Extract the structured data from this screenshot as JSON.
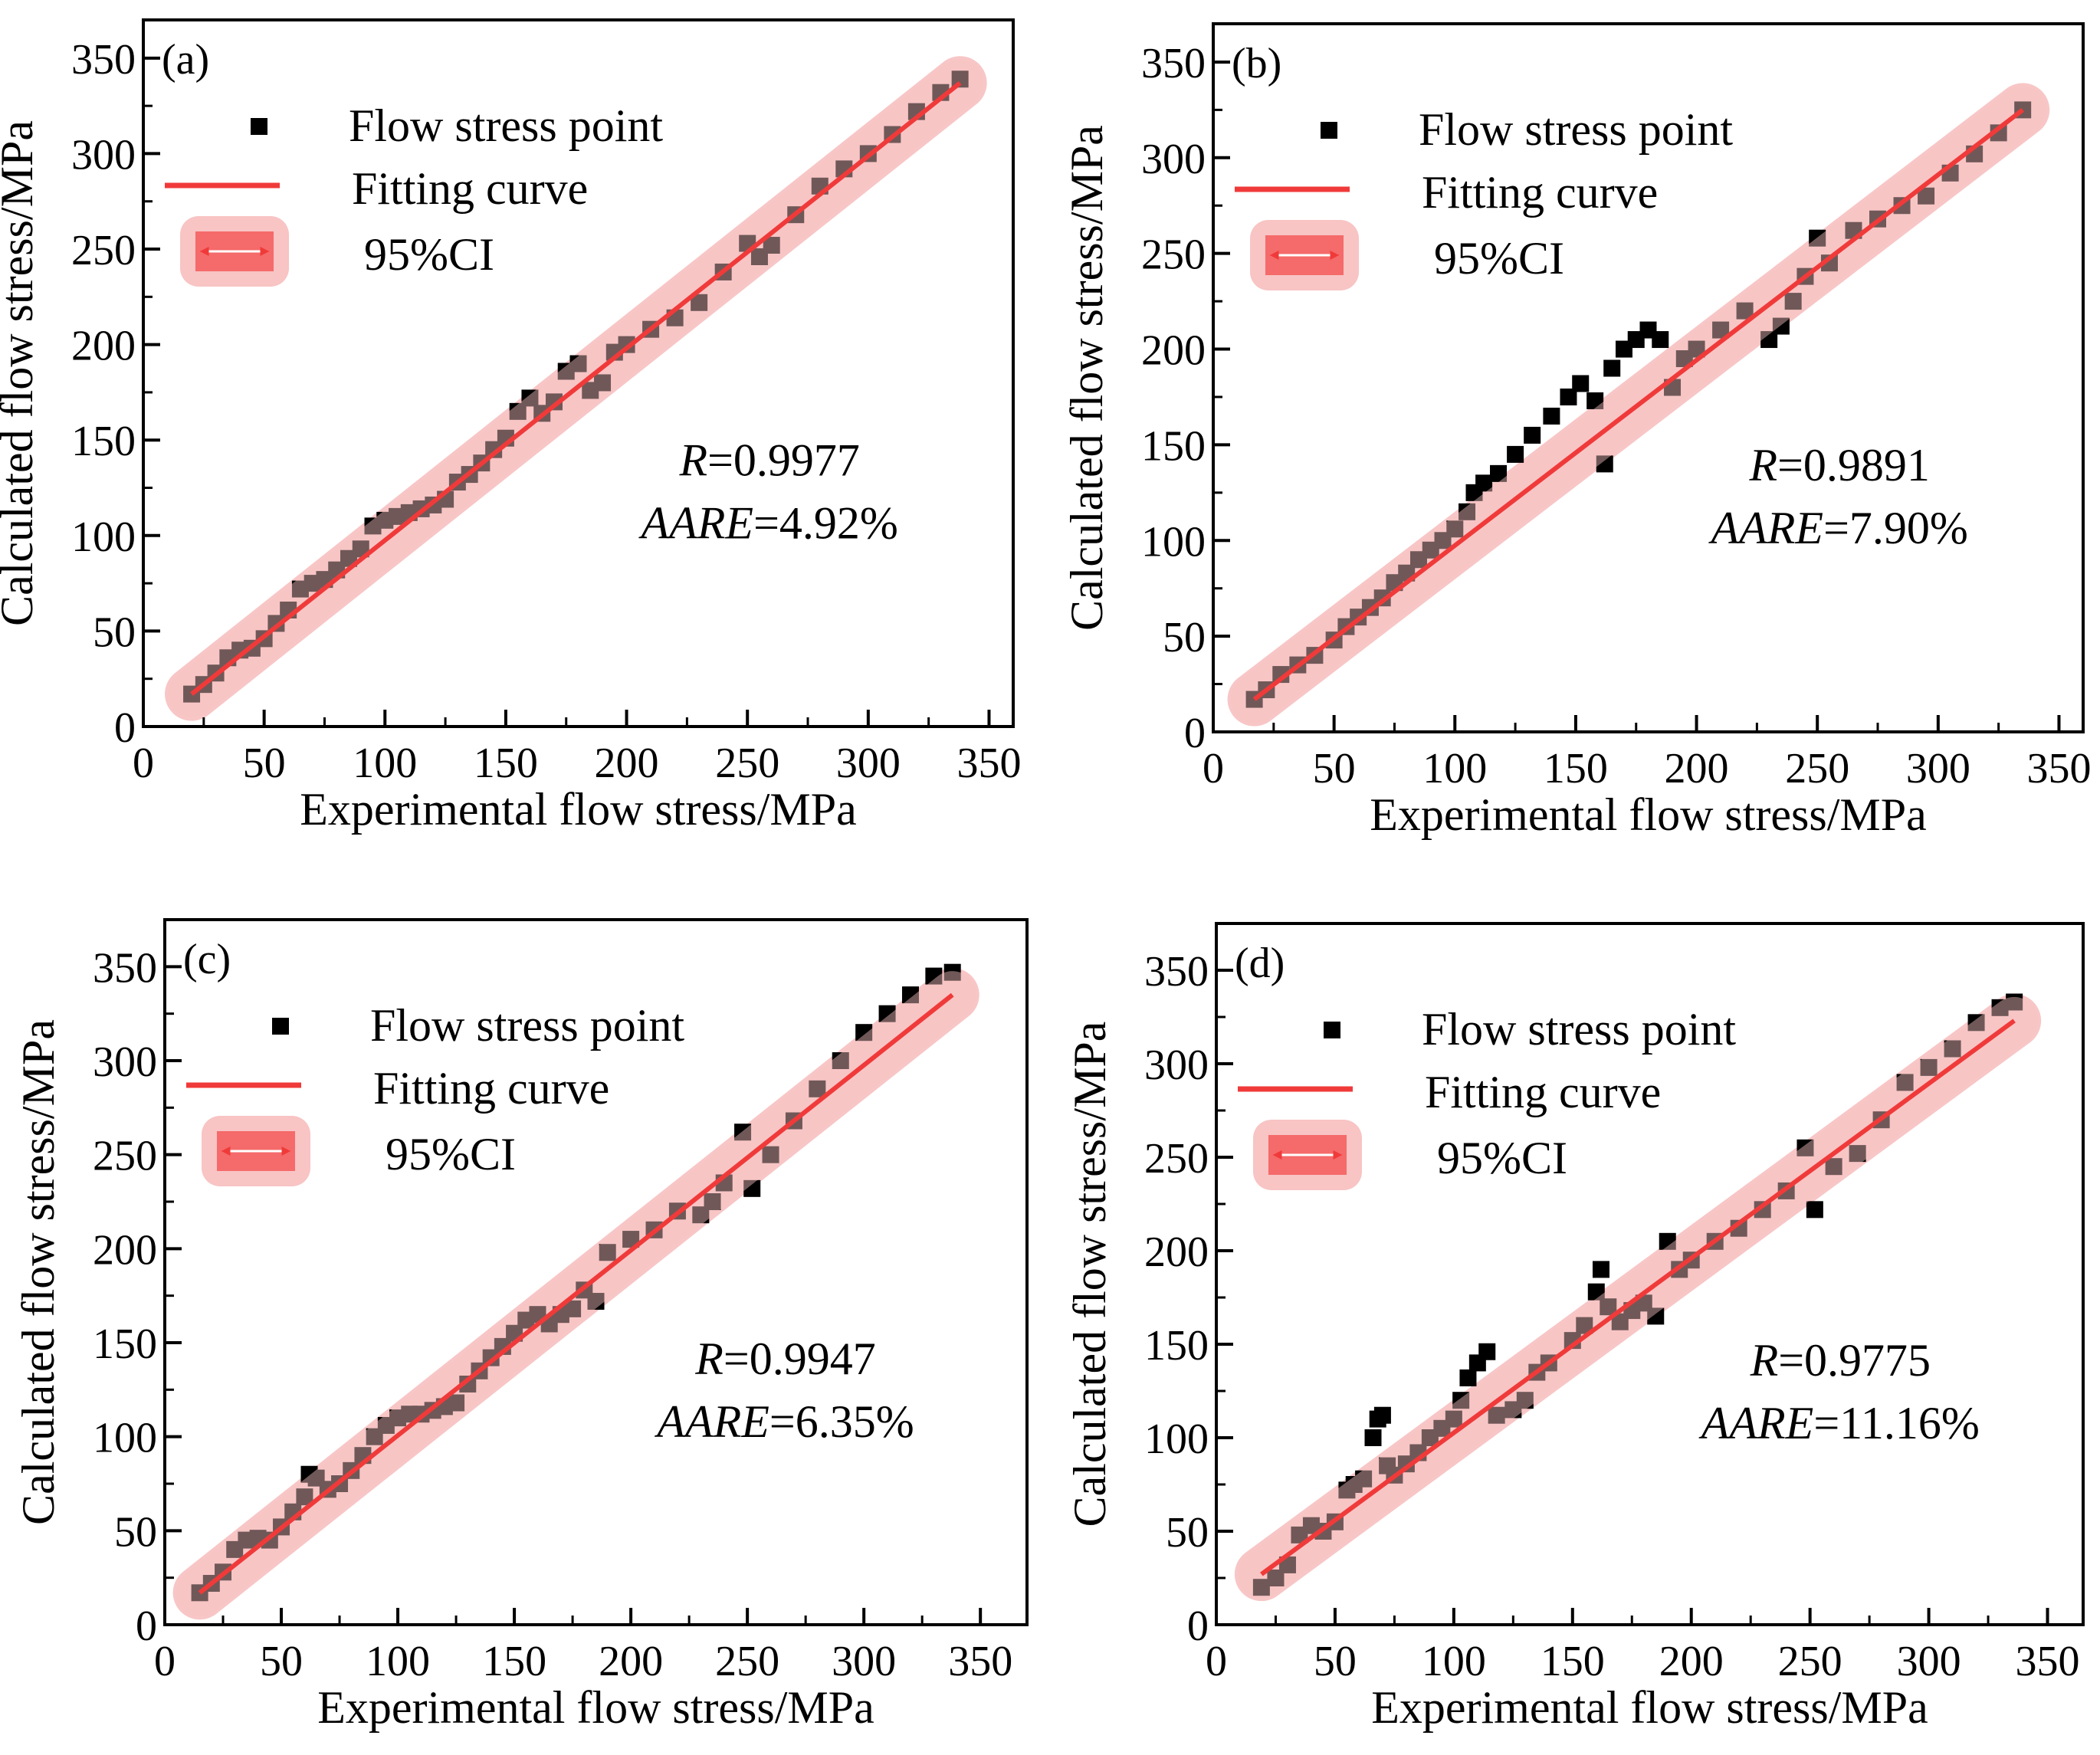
{
  "colors": {
    "point": "#000000",
    "fit": "#f03a3a",
    "band": "#f8c4c4",
    "legend_band_inner": "#f56a6a",
    "axes": "#000000"
  },
  "chart_data": [
    {
      "type": "scatter",
      "panel_label": "(a)",
      "xlabel": "Experimental flow stress/MPa",
      "ylabel": "Calculated flow stress/MPa",
      "xlim": [
        0,
        360
      ],
      "ylim": [
        0,
        370
      ],
      "xticks": [
        0,
        50,
        100,
        150,
        200,
        250,
        300,
        350
      ],
      "yticks": [
        0,
        50,
        100,
        150,
        200,
        250,
        300,
        350
      ],
      "xtick_labels": [
        "0",
        "50",
        "100",
        "150",
        "200",
        "250",
        "300",
        "350"
      ],
      "ytick_labels": [
        "0",
        "50",
        "100",
        "150",
        "200",
        "250",
        "300",
        "350"
      ],
      "legend": {
        "position": "top-left",
        "points": "Flow stress point",
        "fit": "Fitting curve",
        "ci": "95%CI"
      },
      "stats": {
        "r_label": "R",
        "r_value": "=0.9977",
        "aare_label": "AARE",
        "aare_value": "=4.92%"
      },
      "fit_line": {
        "x": [
          20,
          338
        ],
        "y": [
          17,
          337
        ]
      },
      "points": [
        [
          20,
          17
        ],
        [
          25,
          22
        ],
        [
          30,
          28
        ],
        [
          35,
          36
        ],
        [
          40,
          40
        ],
        [
          45,
          41
        ],
        [
          50,
          46
        ],
        [
          55,
          54
        ],
        [
          60,
          61
        ],
        [
          65,
          72
        ],
        [
          70,
          75
        ],
        [
          75,
          77
        ],
        [
          80,
          82
        ],
        [
          85,
          88
        ],
        [
          90,
          93
        ],
        [
          95,
          105
        ],
        [
          100,
          108
        ],
        [
          105,
          110
        ],
        [
          110,
          112
        ],
        [
          115,
          114
        ],
        [
          120,
          116
        ],
        [
          125,
          119
        ],
        [
          130,
          128
        ],
        [
          135,
          132
        ],
        [
          140,
          138
        ],
        [
          145,
          145
        ],
        [
          150,
          151
        ],
        [
          155,
          165
        ],
        [
          160,
          172
        ],
        [
          165,
          164
        ],
        [
          170,
          170
        ],
        [
          175,
          186
        ],
        [
          180,
          190
        ],
        [
          185,
          176
        ],
        [
          190,
          180
        ],
        [
          195,
          196
        ],
        [
          200,
          200
        ],
        [
          210,
          208
        ],
        [
          220,
          214
        ],
        [
          230,
          222
        ],
        [
          240,
          238
        ],
        [
          250,
          253
        ],
        [
          255,
          246
        ],
        [
          260,
          252
        ],
        [
          270,
          268
        ],
        [
          280,
          283
        ],
        [
          290,
          292
        ],
        [
          300,
          300
        ],
        [
          310,
          310
        ],
        [
          320,
          322
        ],
        [
          330,
          332
        ],
        [
          338,
          339
        ]
      ]
    },
    {
      "type": "scatter",
      "panel_label": "(b)",
      "xlabel": "Experimental flow stress/MPa",
      "ylabel": "Calculated flow stress/MPa",
      "xlim": [
        0,
        360
      ],
      "ylim": [
        0,
        370
      ],
      "xticks": [
        0,
        50,
        100,
        150,
        200,
        250,
        300,
        350
      ],
      "yticks": [
        0,
        50,
        100,
        150,
        200,
        250,
        300,
        350
      ],
      "xtick_labels": [
        "0",
        "50",
        "100",
        "150",
        "200",
        "250",
        "300",
        "350"
      ],
      "ytick_labels": [
        "0",
        "50",
        "100",
        "150",
        "200",
        "250",
        "300",
        "350"
      ],
      "legend": {
        "position": "top-left",
        "points": "Flow stress point",
        "fit": "Fitting curve",
        "ci": "95%CI"
      },
      "stats": {
        "r_label": "R",
        "r_value": "=0.9891",
        "aare_label": "AARE",
        "aare_value": "=7.90%"
      },
      "fit_line": {
        "x": [
          17,
          335
        ],
        "y": [
          17,
          325
        ]
      },
      "points": [
        [
          17,
          17
        ],
        [
          22,
          22
        ],
        [
          28,
          30
        ],
        [
          35,
          35
        ],
        [
          42,
          40
        ],
        [
          50,
          48
        ],
        [
          55,
          55
        ],
        [
          60,
          60
        ],
        [
          65,
          65
        ],
        [
          70,
          70
        ],
        [
          75,
          78
        ],
        [
          80,
          83
        ],
        [
          85,
          90
        ],
        [
          90,
          95
        ],
        [
          95,
          100
        ],
        [
          100,
          106
        ],
        [
          105,
          115
        ],
        [
          108,
          125
        ],
        [
          112,
          130
        ],
        [
          118,
          135
        ],
        [
          125,
          145
        ],
        [
          132,
          155
        ],
        [
          140,
          165
        ],
        [
          147,
          175
        ],
        [
          152,
          182
        ],
        [
          158,
          173
        ],
        [
          162,
          140
        ],
        [
          165,
          190
        ],
        [
          170,
          200
        ],
        [
          175,
          205
        ],
        [
          180,
          210
        ],
        [
          185,
          205
        ],
        [
          190,
          180
        ],
        [
          195,
          195
        ],
        [
          200,
          200
        ],
        [
          210,
          210
        ],
        [
          220,
          220
        ],
        [
          230,
          205
        ],
        [
          235,
          212
        ],
        [
          240,
          225
        ],
        [
          245,
          238
        ],
        [
          250,
          258
        ],
        [
          255,
          245
        ],
        [
          265,
          262
        ],
        [
          275,
          268
        ],
        [
          285,
          275
        ],
        [
          295,
          280
        ],
        [
          305,
          292
        ],
        [
          315,
          302
        ],
        [
          325,
          313
        ],
        [
          335,
          325
        ]
      ]
    },
    {
      "type": "scatter",
      "panel_label": "(c)",
      "xlabel": "Experimental flow stress/MPa",
      "ylabel": "Calculated flow stress/MPa",
      "xlim": [
        0,
        370
      ],
      "ylim": [
        0,
        375
      ],
      "xticks": [
        0,
        50,
        100,
        150,
        200,
        250,
        300,
        350
      ],
      "yticks": [
        0,
        50,
        100,
        150,
        200,
        250,
        300,
        350
      ],
      "xtick_labels": [
        "0",
        "50",
        "100",
        "150",
        "200",
        "250",
        "300",
        "350"
      ],
      "ytick_labels": [
        "0",
        "50",
        "100",
        "150",
        "200",
        "250",
        "300",
        "350"
      ],
      "legend": {
        "position": "top-left",
        "points": "Flow stress point",
        "fit": "Fitting curve",
        "ci": "95%CI"
      },
      "stats": {
        "r_label": "R",
        "r_value": "=0.9947",
        "aare_label": "AARE",
        "aare_value": "=6.35%"
      },
      "fit_line": {
        "x": [
          15,
          338
        ],
        "y": [
          17,
          335
        ]
      },
      "points": [
        [
          15,
          17
        ],
        [
          20,
          22
        ],
        [
          25,
          28
        ],
        [
          30,
          40
        ],
        [
          35,
          45
        ],
        [
          40,
          46
        ],
        [
          45,
          45
        ],
        [
          50,
          52
        ],
        [
          55,
          60
        ],
        [
          60,
          68
        ],
        [
          62,
          80
        ],
        [
          65,
          78
        ],
        [
          70,
          72
        ],
        [
          75,
          75
        ],
        [
          80,
          82
        ],
        [
          85,
          90
        ],
        [
          90,
          100
        ],
        [
          95,
          106
        ],
        [
          100,
          110
        ],
        [
          105,
          112
        ],
        [
          110,
          112
        ],
        [
          115,
          114
        ],
        [
          120,
          116
        ],
        [
          125,
          118
        ],
        [
          130,
          128
        ],
        [
          135,
          135
        ],
        [
          140,
          142
        ],
        [
          145,
          148
        ],
        [
          150,
          155
        ],
        [
          155,
          162
        ],
        [
          160,
          165
        ],
        [
          165,
          160
        ],
        [
          170,
          165
        ],
        [
          175,
          168
        ],
        [
          180,
          178
        ],
        [
          185,
          172
        ],
        [
          190,
          198
        ],
        [
          200,
          205
        ],
        [
          210,
          210
        ],
        [
          220,
          220
        ],
        [
          230,
          218
        ],
        [
          235,
          225
        ],
        [
          240,
          235
        ],
        [
          248,
          262
        ],
        [
          252,
          232
        ],
        [
          260,
          250
        ],
        [
          270,
          268
        ],
        [
          280,
          285
        ],
        [
          290,
          300
        ],
        [
          300,
          315
        ],
        [
          310,
          325
        ],
        [
          320,
          335
        ],
        [
          330,
          345
        ],
        [
          338,
          347
        ]
      ]
    },
    {
      "type": "scatter",
      "panel_label": "(d)",
      "xlabel": "Experimental flow stress/MPa",
      "ylabel": "Calculated flow stress/MPa",
      "xlim": [
        0,
        365
      ],
      "ylim": [
        0,
        375
      ],
      "xticks": [
        0,
        50,
        100,
        150,
        200,
        250,
        300,
        350
      ],
      "yticks": [
        0,
        50,
        100,
        150,
        200,
        250,
        300,
        350
      ],
      "xtick_labels": [
        "0",
        "50",
        "100",
        "150",
        "200",
        "250",
        "300",
        "350"
      ],
      "ytick_labels": [
        "0",
        "50",
        "100",
        "150",
        "200",
        "250",
        "300",
        "350"
      ],
      "legend": {
        "position": "top-left",
        "points": "Flow stress point",
        "fit": "Fitting curve",
        "ci": "95%CI"
      },
      "stats": {
        "r_label": "R",
        "r_value": "=0.9775",
        "aare_label": "AARE",
        "aare_value": "=11.16%"
      },
      "fit_line": {
        "x": [
          19,
          336
        ],
        "y": [
          27,
          323
        ]
      },
      "points": [
        [
          19,
          20
        ],
        [
          25,
          25
        ],
        [
          30,
          32
        ],
        [
          35,
          48
        ],
        [
          40,
          53
        ],
        [
          45,
          50
        ],
        [
          50,
          55
        ],
        [
          55,
          72
        ],
        [
          58,
          75
        ],
        [
          62,
          78
        ],
        [
          66,
          100
        ],
        [
          68,
          110
        ],
        [
          70,
          112
        ],
        [
          72,
          85
        ],
        [
          75,
          80
        ],
        [
          80,
          86
        ],
        [
          85,
          92
        ],
        [
          90,
          100
        ],
        [
          95,
          105
        ],
        [
          100,
          110
        ],
        [
          103,
          120
        ],
        [
          106,
          132
        ],
        [
          110,
          140
        ],
        [
          114,
          146
        ],
        [
          118,
          112
        ],
        [
          125,
          115
        ],
        [
          130,
          120
        ],
        [
          135,
          135
        ],
        [
          140,
          140
        ],
        [
          150,
          152
        ],
        [
          155,
          160
        ],
        [
          160,
          178
        ],
        [
          162,
          190
        ],
        [
          165,
          170
        ],
        [
          170,
          162
        ],
        [
          175,
          168
        ],
        [
          180,
          172
        ],
        [
          185,
          165
        ],
        [
          190,
          205
        ],
        [
          195,
          190
        ],
        [
          200,
          195
        ],
        [
          210,
          205
        ],
        [
          220,
          212
        ],
        [
          230,
          222
        ],
        [
          240,
          232
        ],
        [
          248,
          255
        ],
        [
          252,
          222
        ],
        [
          260,
          245
        ],
        [
          270,
          252
        ],
        [
          280,
          270
        ],
        [
          290,
          290
        ],
        [
          300,
          298
        ],
        [
          310,
          308
        ],
        [
          320,
          322
        ],
        [
          330,
          330
        ],
        [
          336,
          333
        ]
      ]
    }
  ]
}
